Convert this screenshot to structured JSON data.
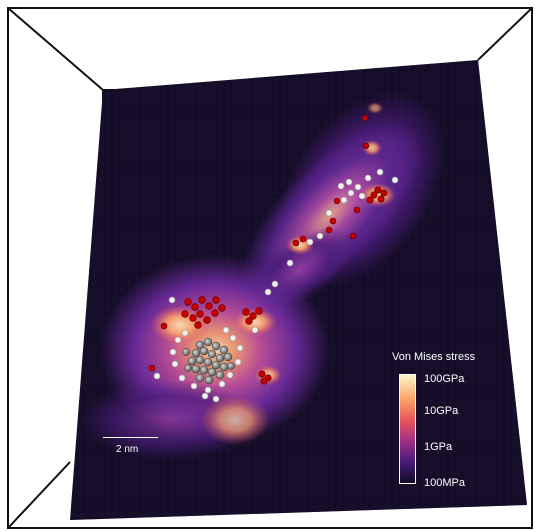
{
  "scale_bar": {
    "label": "2 nm"
  },
  "colorbar": {
    "title": "Von Mises stress",
    "ticks": [
      "100GPa",
      "10GPa",
      "1GPa",
      "100MPa"
    ]
  },
  "colors": {
    "background": "#ffffff",
    "box_edges": "#111111",
    "dark_region": "#130c24",
    "mid_purple": "#6a2a9c",
    "hot_orange": "#fca46a",
    "red_atoms": "#c40000",
    "white_atoms": "#f0f0f0",
    "gray_atoms": "#8a8a8a"
  }
}
